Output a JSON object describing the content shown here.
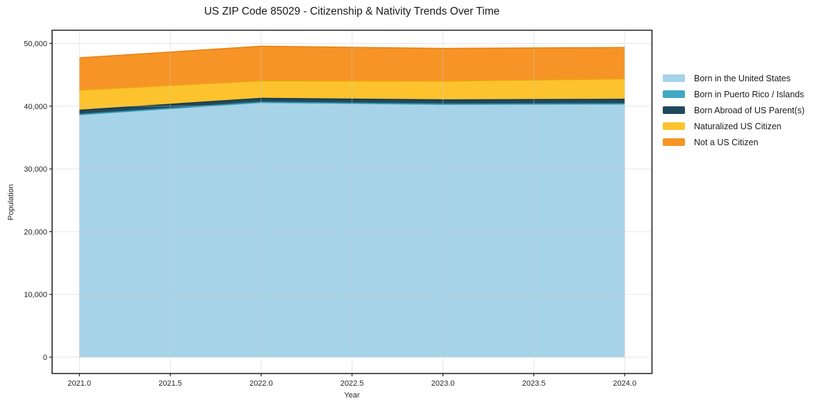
{
  "chart_data": {
    "type": "area",
    "stacked": true,
    "title": "US ZIP Code 85029 - Citizenship & Nativity Trends Over Time",
    "xlabel": "Year",
    "ylabel": "Population",
    "x": [
      2021,
      2022,
      2023,
      2024
    ],
    "series": [
      {
        "name": "Born in the United States",
        "color": "#a7d3e8",
        "edge": "#a7d3e8",
        "values": [
          38550,
          40500,
          40200,
          40250
        ]
      },
      {
        "name": "Born in Puerto Rico / Islands",
        "color": "#41a8c4",
        "edge": "#2f91ad",
        "values": [
          150,
          150,
          150,
          150
        ]
      },
      {
        "name": "Born Abroad of US Parent(s)",
        "color": "#21495c",
        "edge": "#16394a",
        "values": [
          650,
          600,
          650,
          700
        ]
      },
      {
        "name": "Naturalized US Citizen",
        "color": "#fcc32e",
        "edge": "#eda413",
        "values": [
          3200,
          2800,
          3000,
          3250
        ]
      },
      {
        "name": "Not a US Citizen",
        "color": "#f79428",
        "edge": "#e8820f",
        "values": [
          5150,
          5500,
          5200,
          5000
        ]
      }
    ],
    "totals_by_year": [
      47700,
      49550,
      49200,
      49350
    ],
    "xlim": [
      2020.85,
      2024.15
    ],
    "ylim": [
      -2600,
      52100
    ],
    "xticks": [
      2021.0,
      2021.5,
      2022.0,
      2022.5,
      2023.0,
      2023.5,
      2024.0
    ],
    "xtick_labels": [
      "2021.0",
      "2021.5",
      "2022.0",
      "2022.5",
      "2023.0",
      "2023.5",
      "2024.0"
    ],
    "yticks": [
      0,
      10000,
      20000,
      30000,
      40000,
      50000
    ],
    "ytick_labels": [
      "0",
      "10,000",
      "20,000",
      "30,000",
      "40,000",
      "50,000"
    ],
    "grid": true,
    "legend_position": "right",
    "colors": {
      "grid": "#c9c9c9",
      "spine": "#1a1a1a",
      "tick_text": "#262626",
      "background": "#ffffff"
    }
  }
}
